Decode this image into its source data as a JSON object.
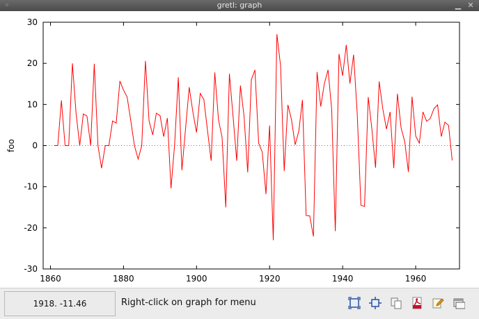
{
  "window": {
    "title": "gretl: graph"
  },
  "statusbar": {
    "coords": "1918. -11.46",
    "hint": "Right-click on graph for menu"
  },
  "toolbar": {
    "icons": [
      "zoom-icon",
      "zoom-center-icon",
      "copy-icon",
      "pdf-icon",
      "edit-icon",
      "close-window-icon"
    ]
  },
  "chart_data": {
    "type": "line",
    "title": "",
    "xlabel": "",
    "ylabel": "foo",
    "xlim": [
      1858,
      1972
    ],
    "ylim": [
      -30,
      30
    ],
    "x_ticks": [
      "1860",
      "1880",
      "1900",
      "1920",
      "1940",
      "1960"
    ],
    "y_ticks": [
      "-30",
      "-20",
      "-10",
      "0",
      "10",
      "20",
      "30"
    ],
    "grid": false,
    "zero_line": true,
    "series_color": "#ff0000",
    "x": [
      1861,
      1862,
      1863,
      1864,
      1865,
      1866,
      1867,
      1868,
      1869,
      1870,
      1871,
      1872,
      1873,
      1874,
      1875,
      1876,
      1877,
      1878,
      1879,
      1880,
      1881,
      1882,
      1883,
      1884,
      1885,
      1886,
      1887,
      1888,
      1889,
      1890,
      1891,
      1892,
      1893,
      1894,
      1895,
      1896,
      1897,
      1898,
      1899,
      1900,
      1901,
      1902,
      1903,
      1904,
      1905,
      1906,
      1907,
      1908,
      1909,
      1910,
      1911,
      1912,
      1913,
      1914,
      1915,
      1916,
      1917,
      1918,
      1919,
      1920,
      1921,
      1922,
      1923,
      1924,
      1925,
      1926,
      1927,
      1928,
      1929,
      1930,
      1931,
      1932,
      1933,
      1934,
      1935,
      1936,
      1937,
      1938,
      1939,
      1940,
      1941,
      1942,
      1943,
      1944,
      1945,
      1946,
      1947,
      1948,
      1949,
      1950,
      1951,
      1952,
      1953,
      1954,
      1955,
      1956,
      1957,
      1958,
      1959,
      1960,
      1961,
      1962,
      1963,
      1964,
      1965,
      1966,
      1967,
      1968,
      1969,
      1970
    ],
    "y": [
      0,
      0,
      11,
      0,
      0,
      20,
      8,
      0,
      7.7,
      7.2,
      0,
      19.9,
      0,
      -5.5,
      0,
      0,
      6,
      5.5,
      15.7,
      13.5,
      11.8,
      6,
      0,
      -3.3,
      0,
      20.6,
      6,
      2.6,
      7.9,
      7.3,
      2.2,
      6.7,
      -10.4,
      0.2,
      16.6,
      -6,
      4.3,
      14.2,
      8.1,
      3.2,
      12.7,
      11.2,
      3.6,
      -3.7,
      17.8,
      6.3,
      2,
      -15,
      17.5,
      7,
      -3.7,
      14.6,
      7.2,
      -6.5,
      16,
      18.4,
      0.6,
      -1.6,
      -11.8,
      4.9,
      -23,
      27.1,
      19.4,
      -6.2,
      9.9,
      6.3,
      0.2,
      3.5,
      11.1,
      -17,
      -17.1,
      -22.1,
      17.9,
      9.5,
      15.1,
      18.4,
      8.8,
      -20.8,
      22.3,
      17,
      24.5,
      15.1,
      22.1,
      7.7,
      -14.5,
      -14.8,
      11.8,
      4.1,
      -5.4,
      15.6,
      9,
      4,
      8.2,
      -5.5,
      12.6,
      4.3,
      1,
      -6.4,
      11.9,
      2.3,
      0.6,
      8.2,
      5.9,
      6.6,
      9,
      9.9,
      2.2,
      5.7,
      4.9,
      -3.6
    ]
  }
}
